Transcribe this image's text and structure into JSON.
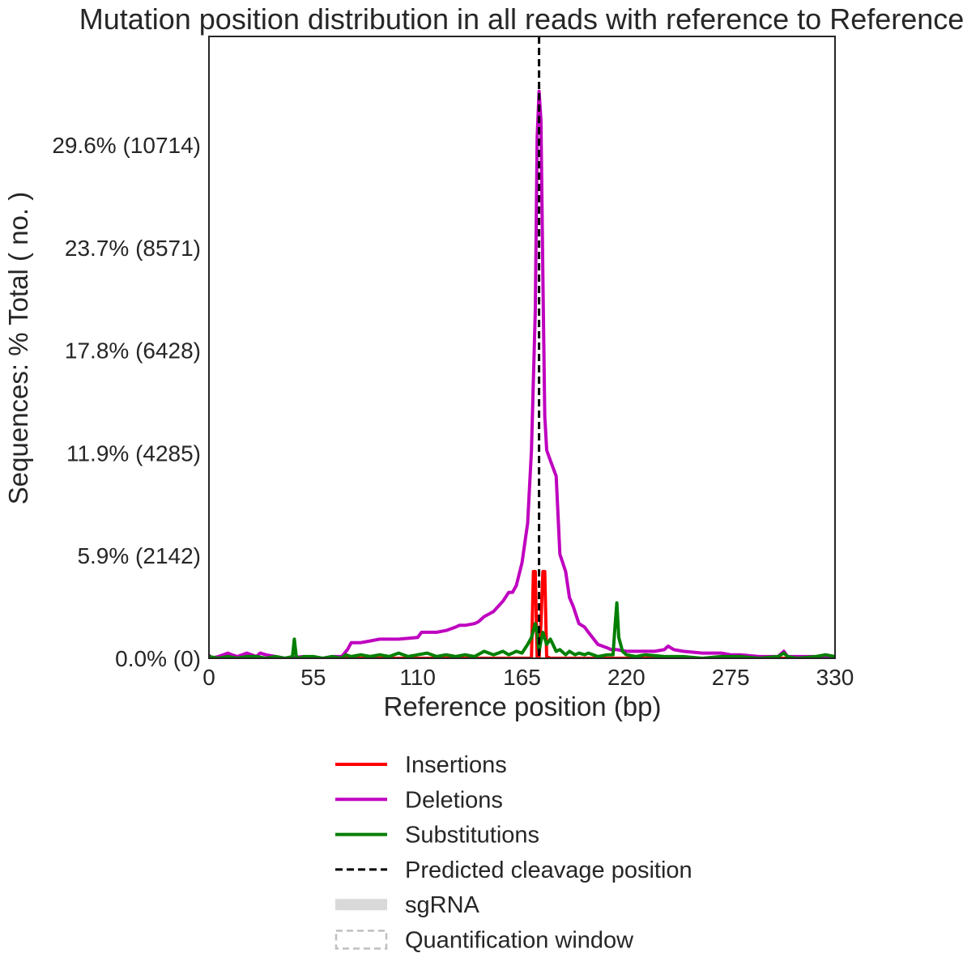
{
  "chart_data": {
    "type": "line",
    "title": "Mutation position distribution in all reads with reference to Reference",
    "xlabel": "Reference position (bp)",
    "ylabel": "Sequences: % Total ( no. )",
    "xlim": [
      0,
      330
    ],
    "ylim": [
      0,
      0.3586
    ],
    "x_ticks": [
      0,
      55,
      110,
      165,
      220,
      275,
      330
    ],
    "y_ticks": [
      {
        "value": 0.0,
        "label": "0.0% (0)"
      },
      {
        "value": 0.0592,
        "label": "5.9% (2142)"
      },
      {
        "value": 0.1184,
        "label": "11.9% (4285)"
      },
      {
        "value": 0.1776,
        "label": "17.8% (6428)"
      },
      {
        "value": 0.2368,
        "label": "23.7% (8571)"
      },
      {
        "value": 0.2961,
        "label": "29.6% (10714)"
      }
    ],
    "grid": false,
    "legend_position": "below",
    "cleavage_position": 174,
    "series": [
      {
        "name": "Insertions",
        "color": "#ff0000",
        "style": "solid",
        "x": [
          0,
          120,
          122,
          124,
          130,
          131,
          132,
          170,
          171,
          172,
          173,
          174,
          175,
          176,
          177,
          178,
          179,
          180,
          330
        ],
        "values": [
          0.0,
          0.0,
          0.0005,
          0.0,
          0.0,
          0.0008,
          0.0,
          0.0,
          0.05,
          0.05,
          0.0,
          0.0,
          0.02,
          0.05,
          0.05,
          0.0,
          0.0005,
          0.0,
          0.0
        ]
      },
      {
        "name": "Deletions",
        "color": "#bf00bf",
        "style": "solid",
        "x": [
          0,
          1,
          5,
          10,
          12,
          15,
          20,
          25,
          27,
          30,
          35,
          40,
          50,
          60,
          65,
          70,
          73,
          75,
          80,
          85,
          90,
          95,
          100,
          110,
          112,
          115,
          120,
          125,
          130,
          132,
          135,
          140,
          142,
          145,
          150,
          155,
          158,
          160,
          162,
          165,
          168,
          170,
          172,
          173,
          174,
          175,
          176,
          177,
          178,
          180,
          183,
          185,
          188,
          190,
          192,
          195,
          198,
          200,
          205,
          210,
          212,
          215,
          220,
          225,
          230,
          235,
          240,
          242,
          245,
          250,
          260,
          265,
          270,
          275,
          280,
          290,
          295,
          300,
          303,
          305,
          310,
          320,
          330
        ],
        "values": [
          0.002,
          0.0,
          0.001,
          0.003,
          0.002,
          0.001,
          0.003,
          0.001,
          0.003,
          0.002,
          0.001,
          0.0,
          0.001,
          0.0,
          0.001,
          0.001,
          0.005,
          0.009,
          0.009,
          0.01,
          0.011,
          0.011,
          0.011,
          0.012,
          0.015,
          0.015,
          0.015,
          0.016,
          0.018,
          0.019,
          0.019,
          0.02,
          0.021,
          0.024,
          0.027,
          0.033,
          0.038,
          0.038,
          0.042,
          0.055,
          0.078,
          0.12,
          0.2,
          0.3,
          0.327,
          0.31,
          0.22,
          0.14,
          0.12,
          0.114,
          0.105,
          0.06,
          0.05,
          0.035,
          0.03,
          0.02,
          0.018,
          0.015,
          0.008,
          0.006,
          0.005,
          0.005,
          0.004,
          0.004,
          0.004,
          0.004,
          0.005,
          0.007,
          0.005,
          0.004,
          0.003,
          0.003,
          0.003,
          0.002,
          0.002,
          0.001,
          0.001,
          0.001,
          0.004,
          0.001,
          0.001,
          0.001,
          0.0
        ]
      },
      {
        "name": "Substitutions",
        "color": "#007f00",
        "style": "solid",
        "x": [
          0,
          5,
          10,
          15,
          20,
          25,
          30,
          35,
          40,
          44,
          45,
          46,
          48,
          50,
          55,
          60,
          65,
          70,
          72,
          75,
          80,
          85,
          90,
          95,
          100,
          105,
          110,
          115,
          120,
          125,
          130,
          135,
          140,
          145,
          150,
          155,
          158,
          160,
          162,
          165,
          168,
          170,
          172,
          173,
          174,
          175,
          176,
          178,
          180,
          183,
          185,
          188,
          190,
          193,
          195,
          198,
          200,
          205,
          210,
          213,
          214,
          215,
          216,
          218,
          220,
          225,
          230,
          240,
          250,
          260,
          270,
          280,
          290,
          300,
          303,
          305,
          310,
          320,
          325,
          330
        ],
        "values": [
          0.001,
          0.0,
          0.001,
          0.0,
          0.001,
          0.001,
          0.0,
          0.001,
          0.0,
          0.001,
          0.011,
          0.001,
          0.0,
          0.001,
          0.001,
          0.0,
          0.001,
          0.0,
          0.002,
          0.001,
          0.002,
          0.001,
          0.002,
          0.001,
          0.003,
          0.001,
          0.002,
          0.003,
          0.001,
          0.002,
          0.001,
          0.002,
          0.001,
          0.004,
          0.002,
          0.004,
          0.002,
          0.003,
          0.004,
          0.003,
          0.008,
          0.012,
          0.02,
          0.015,
          0.004,
          0.01,
          0.015,
          0.008,
          0.011,
          0.004,
          0.005,
          0.002,
          0.004,
          0.002,
          0.003,
          0.002,
          0.003,
          0.001,
          0.002,
          0.002,
          0.018,
          0.032,
          0.012,
          0.004,
          0.002,
          0.001,
          0.002,
          0.001,
          0.001,
          0.0,
          0.001,
          0.001,
          0.0,
          0.001,
          0.003,
          0.001,
          0.0,
          0.001,
          0.002,
          0.001
        ]
      }
    ],
    "legend": [
      {
        "label": "Insertions",
        "color": "#ff0000",
        "kind": "line"
      },
      {
        "label": "Deletions",
        "color": "#bf00bf",
        "kind": "line"
      },
      {
        "label": "Substitutions",
        "color": "#007f00",
        "kind": "line"
      },
      {
        "label": "Predicted cleavage position",
        "color": "#000000",
        "kind": "dashed"
      },
      {
        "label": "sgRNA",
        "color": "#d9d9d9",
        "kind": "band"
      },
      {
        "label": "Quantification window",
        "color": "#bfbfbf",
        "kind": "dashed-box"
      }
    ]
  }
}
